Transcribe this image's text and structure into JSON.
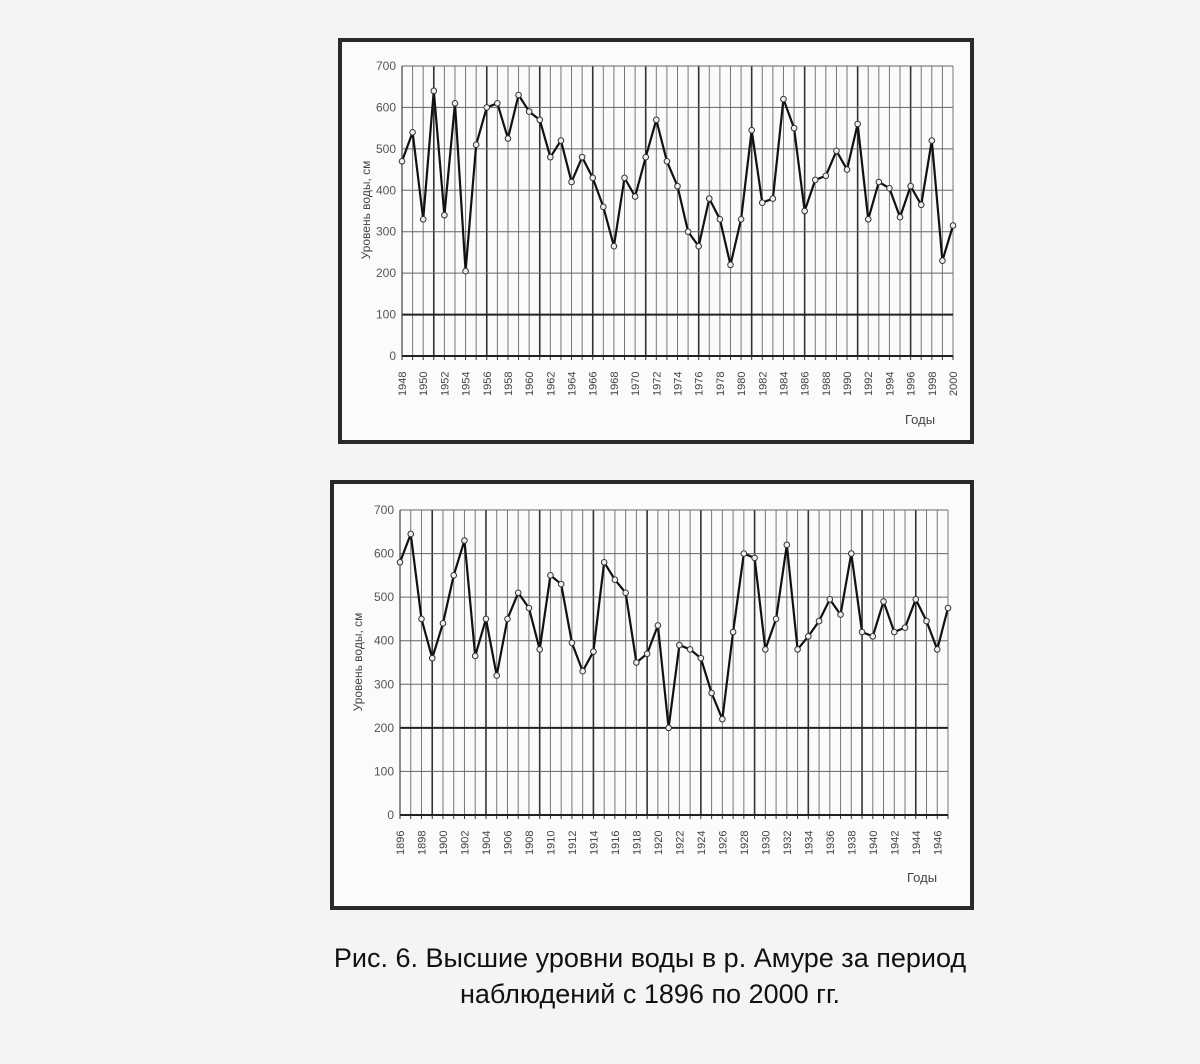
{
  "chart_data": [
    {
      "type": "line",
      "xlabel": "Годы",
      "ylabel": "Уровень воды, см",
      "ylim": [
        0,
        700
      ],
      "yticks": [
        0,
        100,
        200,
        300,
        400,
        500,
        600,
        700
      ],
      "xlim": [
        1948,
        2000
      ],
      "xtick_step": 2,
      "grid": true,
      "x": [
        1948,
        1949,
        1950,
        1951,
        1952,
        1953,
        1954,
        1955,
        1956,
        1957,
        1958,
        1959,
        1960,
        1961,
        1962,
        1963,
        1964,
        1965,
        1966,
        1967,
        1968,
        1969,
        1970,
        1971,
        1972,
        1973,
        1974,
        1975,
        1976,
        1977,
        1978,
        1979,
        1980,
        1981,
        1982,
        1983,
        1984,
        1985,
        1986,
        1987,
        1988,
        1989,
        1990,
        1991,
        1992,
        1993,
        1994,
        1995,
        1996,
        1997,
        1998,
        1999,
        2000
      ],
      "values": [
        470,
        540,
        330,
        640,
        340,
        610,
        205,
        510,
        600,
        610,
        525,
        630,
        590,
        570,
        480,
        520,
        420,
        480,
        430,
        360,
        265,
        430,
        385,
        480,
        570,
        470,
        410,
        300,
        265,
        380,
        330,
        220,
        330,
        545,
        370,
        380,
        620,
        550,
        350,
        425,
        435,
        495,
        450,
        560,
        330,
        420,
        405,
        335,
        410,
        365,
        520,
        230,
        315
      ]
    },
    {
      "type": "line",
      "xlabel": "Годы",
      "ylabel": "Уровень воды, см",
      "ylim": [
        0,
        700
      ],
      "yticks": [
        0,
        100,
        200,
        300,
        400,
        500,
        600,
        700
      ],
      "xlim": [
        1896,
        1947
      ],
      "xtick_step": 2,
      "grid": true,
      "x": [
        1896,
        1897,
        1898,
        1899,
        1900,
        1901,
        1902,
        1903,
        1904,
        1905,
        1906,
        1907,
        1908,
        1909,
        1910,
        1911,
        1912,
        1913,
        1914,
        1915,
        1916,
        1917,
        1918,
        1919,
        1920,
        1921,
        1922,
        1923,
        1924,
        1925,
        1926,
        1927,
        1928,
        1929,
        1930,
        1931,
        1932,
        1933,
        1934,
        1935,
        1936,
        1937,
        1938,
        1939,
        1940,
        1941,
        1942,
        1943,
        1944,
        1945,
        1946,
        1947
      ],
      "values": [
        580,
        645,
        450,
        360,
        440,
        550,
        630,
        365,
        450,
        320,
        450,
        510,
        475,
        380,
        550,
        530,
        395,
        330,
        375,
        580,
        540,
        510,
        350,
        370,
        435,
        200,
        390,
        380,
        360,
        280,
        220,
        420,
        600,
        590,
        380,
        450,
        620,
        380,
        410,
        445,
        495,
        460,
        600,
        420,
        410,
        490,
        420,
        430,
        495,
        445,
        380,
        475
      ]
    }
  ],
  "caption": {
    "line1": "Рис. 6. Высшие уровни воды в р. Амуре за период",
    "line2": "наблюдений с 1896 по 2000 гг."
  }
}
